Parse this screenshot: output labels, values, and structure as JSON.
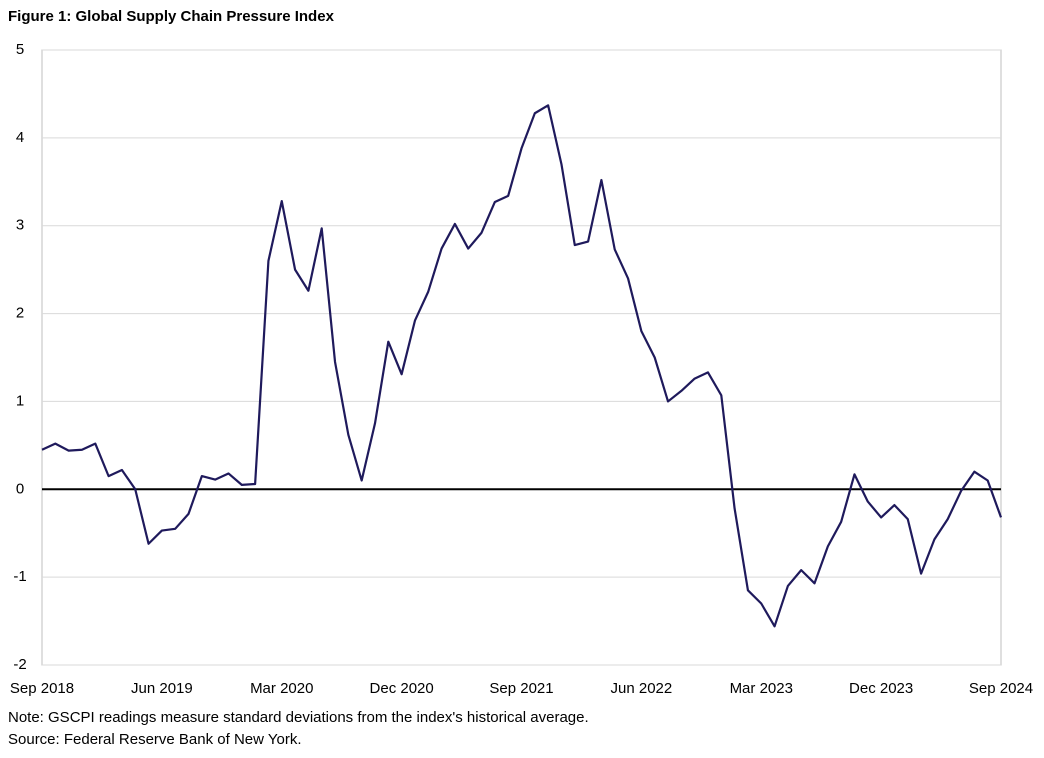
{
  "chart_data": {
    "type": "line",
    "title": "Figure 1: Global Supply Chain Pressure Index",
    "notes": [
      "Note: GSCPI readings measure standard deviations from the index's historical average.",
      "Source: Federal Reserve Bank of New York."
    ],
    "categories": [
      "Sep 2018",
      null,
      null,
      null,
      null,
      null,
      null,
      null,
      null,
      "Jun 2019",
      null,
      null,
      null,
      null,
      null,
      null,
      null,
      null,
      "Mar 2020",
      null,
      null,
      null,
      null,
      null,
      null,
      null,
      null,
      "Dec 2020",
      null,
      null,
      null,
      null,
      null,
      null,
      null,
      null,
      "Sep 2021",
      null,
      null,
      null,
      null,
      null,
      null,
      null,
      null,
      "Jun 2022",
      null,
      null,
      null,
      null,
      null,
      null,
      null,
      null,
      "Mar 2023",
      null,
      null,
      null,
      null,
      null,
      null,
      null,
      null,
      "Dec 2023",
      null,
      null,
      null,
      null,
      null,
      null,
      null,
      null,
      "Sep 2024"
    ],
    "series": [
      {
        "name": "GSCPI",
        "color": "#1f1a5c",
        "values": [
          0.45,
          0.52,
          0.44,
          0.45,
          0.52,
          0.15,
          0.22,
          0.0,
          -0.62,
          -0.47,
          -0.45,
          -0.28,
          0.15,
          0.11,
          0.18,
          0.05,
          0.06,
          2.6,
          3.28,
          2.5,
          2.26,
          2.97,
          1.45,
          0.62,
          0.1,
          0.75,
          1.68,
          1.31,
          1.92,
          2.25,
          2.74,
          3.02,
          2.74,
          2.92,
          3.27,
          3.34,
          3.88,
          4.28,
          4.37,
          3.7,
          2.78,
          2.82,
          3.52,
          2.73,
          2.4,
          1.8,
          1.5,
          1.0,
          1.12,
          1.26,
          1.33,
          1.07,
          -0.22,
          -1.15,
          -1.3,
          -1.56,
          -1.1,
          -0.92,
          -1.07,
          -0.65,
          -0.37,
          0.17,
          -0.14,
          -0.32,
          -0.18,
          -0.34,
          -0.96,
          -0.57,
          -0.34,
          -0.02,
          0.2,
          0.1,
          -0.32
        ]
      }
    ],
    "ylim": [
      -2,
      5
    ],
    "yticks": [
      -2,
      -1,
      0,
      1,
      2,
      3,
      4,
      5
    ],
    "grid": true
  }
}
